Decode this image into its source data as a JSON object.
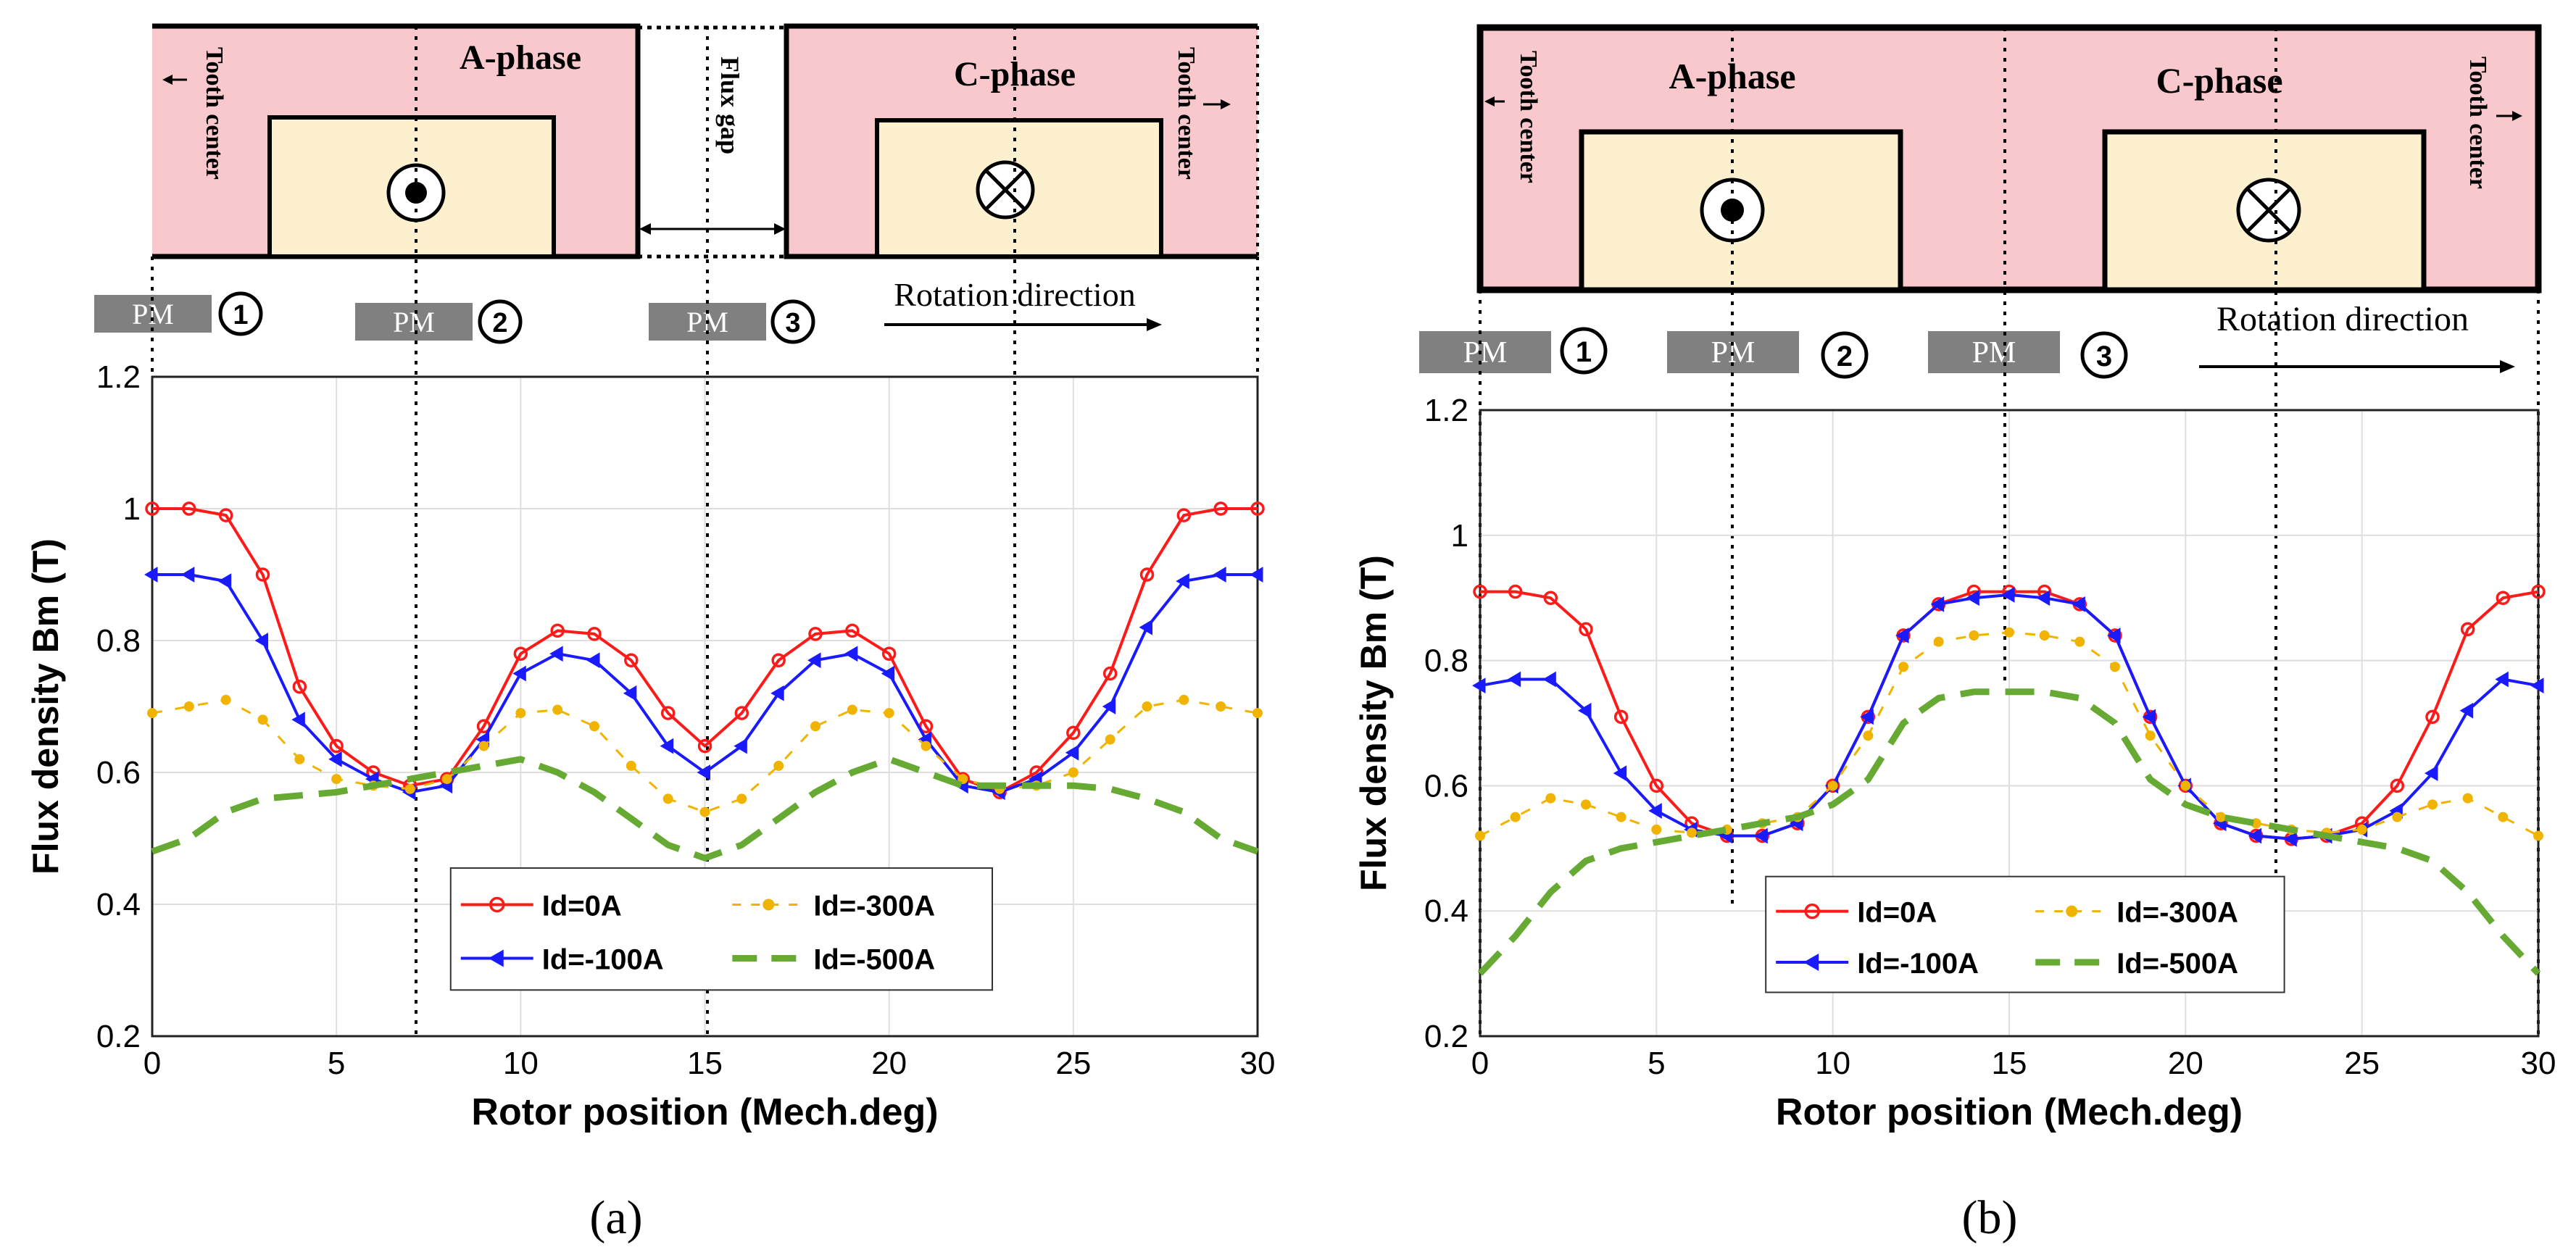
{
  "colors": {
    "tooth_fill": "#f8c8cc",
    "coil_fill": "#fdf0cf",
    "pm_fill": "#808080",
    "id0": "#ff1a1a",
    "id100": "#1a1aff",
    "id300": "#f0b400",
    "id500": "#66aa33",
    "grid": "#dedede"
  },
  "diagram_labels": {
    "a_phase": "A-phase",
    "c_phase": "C-phase",
    "tooth_center": "Tooth center",
    "flux_gap": "Flux gap",
    "rotation": "Rotation direction",
    "pm": "PM",
    "pm_numbers": [
      "①",
      "②",
      "③"
    ]
  },
  "icons": {
    "current_out": "dot-in-circle-icon",
    "current_in": "cross-in-circle-icon"
  },
  "panels": [
    {
      "caption": "(a)"
    },
    {
      "caption": "(b)"
    }
  ],
  "chart_data": [
    {
      "type": "line",
      "title": "",
      "xlabel": "Rotor position (Mech.deg)",
      "ylabel": "Flux density Bm (T)",
      "xlim": [
        0,
        30
      ],
      "ylim": [
        0.2,
        1.2
      ],
      "xticks": [
        "0",
        "5",
        "10",
        "15",
        "20",
        "25",
        "30"
      ],
      "yticks": [
        "0.2",
        "0.4",
        "0.6",
        "0.8",
        "1",
        "1.2"
      ],
      "grid": true,
      "legend_position": "bottom-center",
      "x": [
        0,
        1,
        2,
        3,
        4,
        5,
        6,
        7,
        8,
        9,
        10,
        11,
        12,
        13,
        14,
        15,
        16,
        17,
        18,
        19,
        20,
        21,
        22,
        23,
        24,
        25,
        26,
        27,
        28,
        29,
        30
      ],
      "series": [
        {
          "name": "Id=0A",
          "marker": "circle",
          "values": [
            1.0,
            1.0,
            0.99,
            0.9,
            0.73,
            0.64,
            0.6,
            0.58,
            0.59,
            0.67,
            0.78,
            0.815,
            0.81,
            0.77,
            0.69,
            0.64,
            0.69,
            0.77,
            0.81,
            0.815,
            0.78,
            0.67,
            0.59,
            0.57,
            0.6,
            0.66,
            0.75,
            0.9,
            0.99,
            1.0,
            1.0
          ]
        },
        {
          "name": "Id=-100A",
          "marker": "triangle",
          "values": [
            0.9,
            0.9,
            0.89,
            0.8,
            0.68,
            0.62,
            0.59,
            0.57,
            0.58,
            0.65,
            0.75,
            0.78,
            0.77,
            0.72,
            0.64,
            0.6,
            0.64,
            0.72,
            0.77,
            0.78,
            0.75,
            0.65,
            0.58,
            0.57,
            0.59,
            0.63,
            0.7,
            0.82,
            0.89,
            0.9,
            0.9
          ]
        },
        {
          "name": "Id=-300A",
          "marker": "dot-dashed",
          "values": [
            0.69,
            0.7,
            0.71,
            0.68,
            0.62,
            0.59,
            0.58,
            0.575,
            0.59,
            0.64,
            0.69,
            0.695,
            0.67,
            0.61,
            0.56,
            0.54,
            0.56,
            0.61,
            0.67,
            0.695,
            0.69,
            0.64,
            0.59,
            0.575,
            0.58,
            0.6,
            0.65,
            0.7,
            0.71,
            0.7,
            0.69
          ]
        },
        {
          "name": "Id=-500A",
          "marker": "dashed",
          "values": [
            0.48,
            0.5,
            0.54,
            0.56,
            0.565,
            0.57,
            0.58,
            0.59,
            0.6,
            0.61,
            0.62,
            0.6,
            0.57,
            0.53,
            0.49,
            0.47,
            0.49,
            0.53,
            0.57,
            0.6,
            0.62,
            0.6,
            0.58,
            0.58,
            0.58,
            0.58,
            0.575,
            0.56,
            0.54,
            0.5,
            0.48
          ]
        }
      ]
    },
    {
      "type": "line",
      "title": "",
      "xlabel": "Rotor position (Mech.deg)",
      "ylabel": "Flux density Bm (T)",
      "xlim": [
        0,
        30
      ],
      "ylim": [
        0.2,
        1.2
      ],
      "xticks": [
        "0",
        "5",
        "10",
        "15",
        "20",
        "25",
        "30"
      ],
      "yticks": [
        "0.2",
        "0.4",
        "0.6",
        "0.8",
        "1",
        "1.2"
      ],
      "grid": true,
      "legend_position": "bottom-center",
      "x": [
        0,
        1,
        2,
        3,
        4,
        5,
        6,
        7,
        8,
        9,
        10,
        11,
        12,
        13,
        14,
        15,
        16,
        17,
        18,
        19,
        20,
        21,
        22,
        23,
        24,
        25,
        26,
        27,
        28,
        29,
        30
      ],
      "series": [
        {
          "name": "Id=0A",
          "marker": "circle",
          "values": [
            0.91,
            0.91,
            0.9,
            0.85,
            0.71,
            0.6,
            0.54,
            0.52,
            0.52,
            0.54,
            0.6,
            0.71,
            0.84,
            0.89,
            0.91,
            0.91,
            0.91,
            0.89,
            0.84,
            0.71,
            0.6,
            0.54,
            0.52,
            0.515,
            0.52,
            0.54,
            0.6,
            0.71,
            0.85,
            0.9,
            0.91
          ]
        },
        {
          "name": "Id=-100A",
          "marker": "triangle",
          "values": [
            0.76,
            0.77,
            0.77,
            0.72,
            0.62,
            0.56,
            0.53,
            0.52,
            0.52,
            0.54,
            0.6,
            0.71,
            0.84,
            0.89,
            0.9,
            0.905,
            0.9,
            0.89,
            0.84,
            0.71,
            0.6,
            0.54,
            0.52,
            0.515,
            0.52,
            0.53,
            0.56,
            0.62,
            0.72,
            0.77,
            0.76
          ]
        },
        {
          "name": "Id=-300A",
          "marker": "dot-dashed",
          "values": [
            0.52,
            0.55,
            0.58,
            0.57,
            0.55,
            0.53,
            0.525,
            0.53,
            0.54,
            0.55,
            0.6,
            0.68,
            0.79,
            0.83,
            0.84,
            0.845,
            0.84,
            0.83,
            0.79,
            0.68,
            0.6,
            0.55,
            0.54,
            0.53,
            0.525,
            0.53,
            0.55,
            0.57,
            0.58,
            0.55,
            0.52
          ]
        },
        {
          "name": "Id=-500A",
          "marker": "dashed",
          "values": [
            0.3,
            0.36,
            0.43,
            0.48,
            0.5,
            0.51,
            0.52,
            0.53,
            0.54,
            0.55,
            0.57,
            0.61,
            0.7,
            0.74,
            0.75,
            0.75,
            0.75,
            0.74,
            0.7,
            0.61,
            0.57,
            0.55,
            0.54,
            0.53,
            0.52,
            0.51,
            0.5,
            0.48,
            0.43,
            0.36,
            0.3
          ]
        }
      ]
    }
  ]
}
